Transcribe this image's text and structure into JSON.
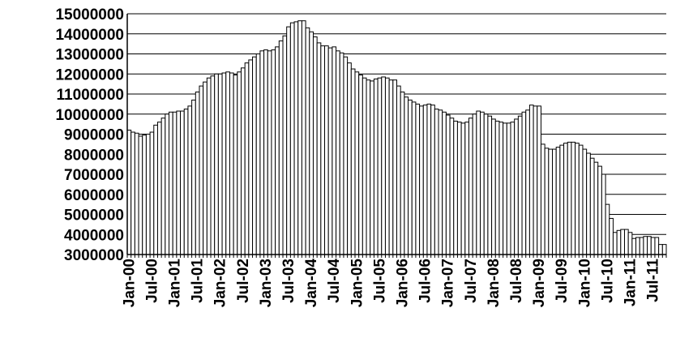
{
  "chart_data": {
    "type": "bar",
    "title": "",
    "xlabel": "",
    "ylabel": "",
    "ylim": [
      3000000,
      15000000
    ],
    "grid": true,
    "legend": "none",
    "colors": {
      "bar_fill": "#ffffff",
      "bar_stroke": "#000000",
      "grid": "#000000",
      "axis": "#000000"
    },
    "y_ticks": [
      "3000000",
      "4000000",
      "5000000",
      "6000000",
      "7000000",
      "8000000",
      "9000000",
      "10000000",
      "11000000",
      "12000000",
      "13000000",
      "14000000",
      "15000000"
    ],
    "x_tick_labels": [
      {
        "label": "Jan-00",
        "index": 0
      },
      {
        "label": "Jul-00",
        "index": 6
      },
      {
        "label": "Jan-01",
        "index": 12
      },
      {
        "label": "Jul-01",
        "index": 18
      },
      {
        "label": "Jan-02",
        "index": 24
      },
      {
        "label": "Jul-02",
        "index": 30
      },
      {
        "label": "Jan-03",
        "index": 36
      },
      {
        "label": "Jul-03",
        "index": 42
      },
      {
        "label": "Jan-04",
        "index": 48
      },
      {
        "label": "Jul-04",
        "index": 54
      },
      {
        "label": "Jan-05",
        "index": 60
      },
      {
        "label": "Jul-05",
        "index": 66
      },
      {
        "label": "Jan-06",
        "index": 72
      },
      {
        "label": "Jul-06",
        "index": 78
      },
      {
        "label": "Jan-07",
        "index": 84
      },
      {
        "label": "Jul-07",
        "index": 90
      },
      {
        "label": "Jan-08",
        "index": 96
      },
      {
        "label": "Jul-08",
        "index": 102
      },
      {
        "label": "Jan-09",
        "index": 108
      },
      {
        "label": "Jul-09",
        "index": 114
      },
      {
        "label": "Jan-10",
        "index": 120
      },
      {
        "label": "Jul-10",
        "index": 126
      },
      {
        "label": "Jan-11",
        "index": 132
      },
      {
        "label": "Jul-11",
        "index": 138
      }
    ],
    "values": [
      9200000,
      9100000,
      9050000,
      8900000,
      8950000,
      9000000,
      9100000,
      9450000,
      9600000,
      9800000,
      10000000,
      10100000,
      10100000,
      10150000,
      10150000,
      10250000,
      10400000,
      10700000,
      11100000,
      11400000,
      11600000,
      11800000,
      11900000,
      12000000,
      12000000,
      12050000,
      12100000,
      12050000,
      11950000,
      12100000,
      12300000,
      12550000,
      12700000,
      12850000,
      13000000,
      13150000,
      13200000,
      13150000,
      13200000,
      13350000,
      13650000,
      13900000,
      14350000,
      14550000,
      14600000,
      14650000,
      14650000,
      14300000,
      14100000,
      13850000,
      13550000,
      13400000,
      13400000,
      13300000,
      13350000,
      13150000,
      13050000,
      12850000,
      12550000,
      12250000,
      12100000,
      11950000,
      11800000,
      11700000,
      11650000,
      11750000,
      11800000,
      11850000,
      11800000,
      11700000,
      11700000,
      11400000,
      11100000,
      10850000,
      10700000,
      10600000,
      10500000,
      10400000,
      10450000,
      10500000,
      10450000,
      10250000,
      10200000,
      10100000,
      9950000,
      9800000,
      9650000,
      9600000,
      9550000,
      9600000,
      9800000,
      10000000,
      10150000,
      10100000,
      10000000,
      9900000,
      9750000,
      9650000,
      9600000,
      9550000,
      9550000,
      9600000,
      9750000,
      9900000,
      10100000,
      10200000,
      10450000,
      10400000,
      10400000,
      8500000,
      8300000,
      8250000,
      8250000,
      8350000,
      8450000,
      8550000,
      8600000,
      8600000,
      8550000,
      8450000,
      8250000,
      8050000,
      7800000,
      7600000,
      7400000,
      7000000,
      5500000,
      4800000,
      4100000,
      4200000,
      4250000,
      4250000,
      4100000,
      3800000,
      3850000,
      3850000,
      3900000,
      3900000,
      3850000,
      3850000,
      3500000,
      3500000
    ]
  }
}
